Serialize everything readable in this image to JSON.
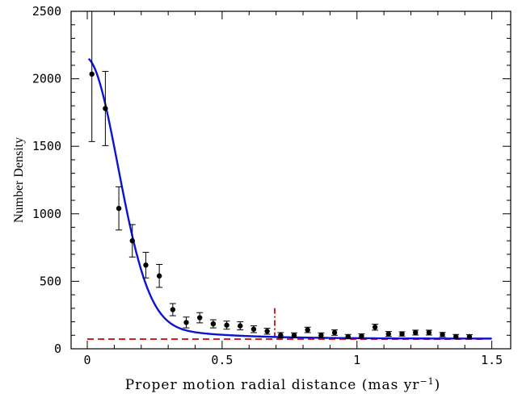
{
  "chart_data": {
    "type": "scatter",
    "title": "",
    "xlabel": "Proper motion radial distance (mas yr",
    "xlabel_superscript": "−1",
    "xlabel_suffix": ")",
    "ylabel": "Number Density",
    "xlim": [
      -0.06,
      1.57
    ],
    "ylim": [
      0,
      2500
    ],
    "x_ticks": [
      0,
      0.5,
      1,
      1.5
    ],
    "x_tick_labels": [
      "0",
      "0.5",
      "1",
      "1.5"
    ],
    "y_ticks": [
      0,
      500,
      1000,
      1500,
      2000,
      2500
    ],
    "y_tick_labels": [
      "0",
      "500",
      "1000",
      "1500",
      "2000",
      "2500"
    ],
    "grid": false,
    "series": [
      {
        "kind": "points_with_error_bars",
        "color": "#000000",
        "x": [
          0.017,
          0.067,
          0.117,
          0.167,
          0.217,
          0.267,
          0.317,
          0.367,
          0.417,
          0.467,
          0.517,
          0.567,
          0.617,
          0.667,
          0.717,
          0.767,
          0.817,
          0.867,
          0.917,
          0.967,
          1.017,
          1.067,
          1.117,
          1.167,
          1.217,
          1.267,
          1.317,
          1.367,
          1.417
        ],
        "y": [
          2035,
          1780,
          1040,
          800,
          620,
          540,
          290,
          195,
          230,
          185,
          175,
          170,
          145,
          130,
          100,
          100,
          140,
          100,
          120,
          90,
          95,
          160,
          110,
          110,
          120,
          120,
          105,
          90,
          90
        ],
        "err": [
          500,
          275,
          160,
          120,
          95,
          85,
          45,
          40,
          38,
          30,
          30,
          30,
          25,
          22,
          20,
          18,
          20,
          18,
          20,
          16,
          16,
          22,
          18,
          16,
          18,
          18,
          16,
          16,
          15
        ]
      },
      {
        "kind": "model_curve",
        "color": "#0a14d2",
        "x_range": [
          0.005,
          1.5
        ],
        "background": 75,
        "components": [
          {
            "amplitude": 1850,
            "sigma": 0.115
          },
          {
            "amplitude": 230,
            "scale": 0.24
          }
        ]
      },
      {
        "kind": "background_line",
        "color": "#d42020",
        "y": 72,
        "x_range": [
          0.0,
          1.48
        ]
      },
      {
        "kind": "marker_line",
        "color": "#d42020",
        "x": 0.695,
        "y_range": [
          80,
          320
        ]
      }
    ]
  }
}
